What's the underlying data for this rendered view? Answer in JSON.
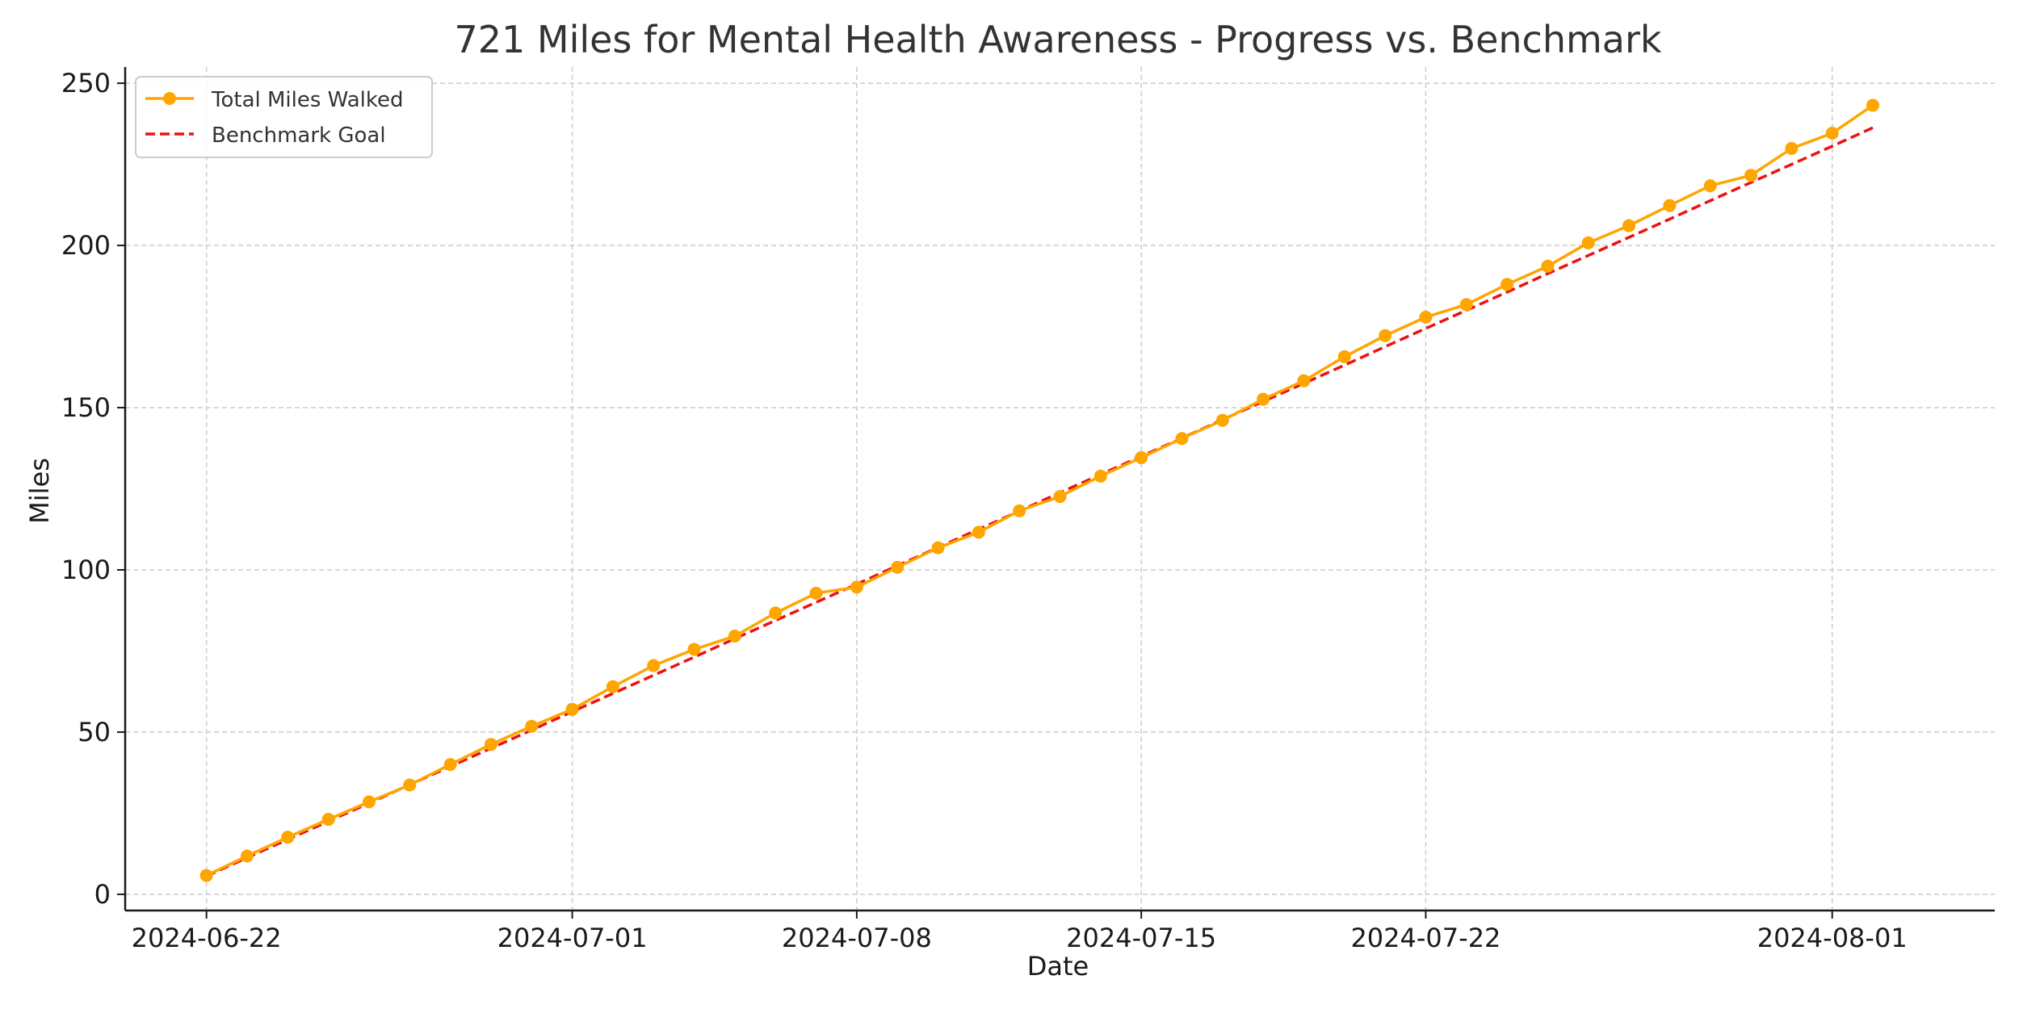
{
  "chart_data": {
    "type": "line",
    "title": "721 Miles for Mental Health Awareness - Progress vs. Benchmark",
    "xlabel": "Date",
    "ylabel": "Miles",
    "xlim": [
      "2024-06-20",
      "2024-08-05"
    ],
    "ylim": [
      -5,
      255
    ],
    "x_ticks": [
      "2024-06-22",
      "2024-07-01",
      "2024-07-08",
      "2024-07-15",
      "2024-07-22",
      "2024-08-01"
    ],
    "y_ticks": [
      0,
      50,
      100,
      150,
      200,
      250
    ],
    "grid": true,
    "legend_position": "top-left",
    "x": [
      "2024-06-22",
      "2024-06-23",
      "2024-06-24",
      "2024-06-25",
      "2024-06-26",
      "2024-06-27",
      "2024-06-28",
      "2024-06-29",
      "2024-06-30",
      "2024-07-01",
      "2024-07-02",
      "2024-07-03",
      "2024-07-04",
      "2024-07-05",
      "2024-07-06",
      "2024-07-07",
      "2024-07-08",
      "2024-07-09",
      "2024-07-10",
      "2024-07-11",
      "2024-07-12",
      "2024-07-13",
      "2024-07-14",
      "2024-07-15",
      "2024-07-16",
      "2024-07-17",
      "2024-07-18",
      "2024-07-19",
      "2024-07-20",
      "2024-07-21",
      "2024-07-22",
      "2024-07-23",
      "2024-07-24",
      "2024-07-25",
      "2024-07-26",
      "2024-07-27",
      "2024-07-28",
      "2024-07-29",
      "2024-07-30",
      "2024-07-31",
      "2024-08-01",
      "2024-08-02"
    ],
    "series": [
      {
        "name": "Total Miles Walked",
        "color": "#FFA500",
        "style": "solid-with-markers",
        "values": [
          5.8,
          11.8,
          17.6,
          23.1,
          28.5,
          33.7,
          40.0,
          46.2,
          51.8,
          57.0,
          64.0,
          70.5,
          75.5,
          79.6,
          86.7,
          92.8,
          94.7,
          100.8,
          106.8,
          111.6,
          118.2,
          122.6,
          128.9,
          134.6,
          140.5,
          146.1,
          152.6,
          158.3,
          165.7,
          172.2,
          177.9,
          181.8,
          188.0,
          193.6,
          200.8,
          206.1,
          212.3,
          218.4,
          221.6,
          229.9,
          234.6,
          243.2
        ]
      },
      {
        "name": "Benchmark Goal",
        "color": "#EE1111",
        "style": "dashed",
        "values": [
          5.6,
          11.3,
          16.9,
          22.5,
          28.1,
          33.8,
          39.4,
          45.0,
          50.6,
          56.3,
          61.9,
          67.5,
          73.1,
          78.8,
          84.4,
          90.0,
          95.6,
          101.3,
          106.9,
          112.5,
          118.1,
          123.8,
          129.4,
          135.0,
          140.6,
          146.3,
          151.9,
          157.5,
          163.1,
          168.8,
          174.4,
          180.0,
          185.6,
          191.3,
          196.9,
          202.5,
          208.1,
          213.8,
          219.4,
          225.0,
          230.6,
          236.3
        ]
      }
    ]
  }
}
